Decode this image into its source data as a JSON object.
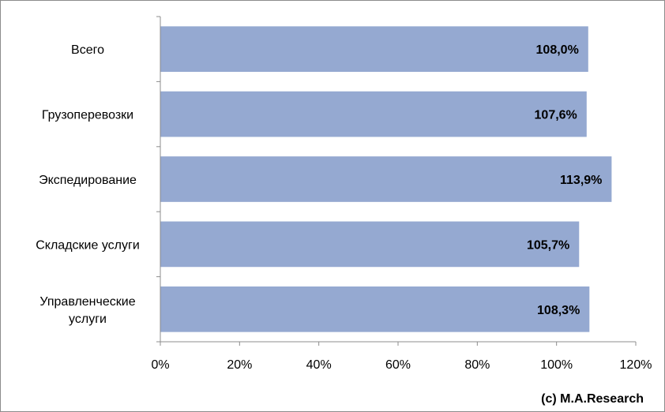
{
  "chart_data": {
    "type": "bar",
    "orientation": "horizontal",
    "categories": [
      "Всего",
      "Грузоперевозки",
      "Экспедирование",
      "Складские услуги",
      "Управленческие услуги"
    ],
    "category_lines": [
      [
        "Всего"
      ],
      [
        "Грузоперевозки"
      ],
      [
        "Экспедирование"
      ],
      [
        "Складские услуги"
      ],
      [
        "Управленческие",
        "услуги"
      ]
    ],
    "values": [
      108.0,
      107.6,
      113.9,
      105.7,
      108.3
    ],
    "value_labels": [
      "108,0%",
      "107,6%",
      "113,9%",
      "105,7%",
      "108,3%"
    ],
    "xlim": [
      0,
      120
    ],
    "ticks": [
      0,
      20,
      40,
      60,
      80,
      100,
      120
    ],
    "tick_labels": [
      "0%",
      "20%",
      "40%",
      "60%",
      "80%",
      "100%",
      "120%"
    ],
    "grid": false,
    "legend": "none",
    "colors": {
      "bar": "#95a9d1",
      "axis": "#8c8c8c"
    }
  },
  "credit": "(c) M.A.Research"
}
